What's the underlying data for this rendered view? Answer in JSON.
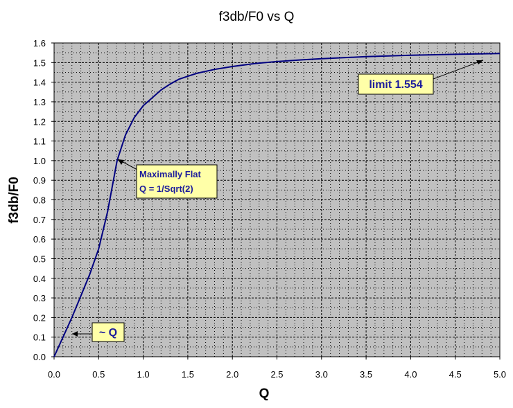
{
  "chart_data": {
    "type": "line",
    "title": "f3db/F0  vs Q",
    "xlabel": "Q",
    "ylabel": "f3db/F0",
    "xlim": [
      0,
      5
    ],
    "ylim": [
      0,
      1.6
    ],
    "x_ticks": [
      "0.0",
      "0.5",
      "1.0",
      "1.5",
      "2.0",
      "2.5",
      "3.0",
      "3.5",
      "4.0",
      "4.5",
      "5.0"
    ],
    "y_ticks": [
      "0.0",
      "0.1",
      "0.2",
      "0.3",
      "0.4",
      "0.5",
      "0.6",
      "0.7",
      "0.8",
      "0.9",
      "1.0",
      "1.1",
      "1.2",
      "1.3",
      "1.4",
      "1.5",
      "1.6"
    ],
    "grid": true,
    "legend": "none",
    "colors": {
      "plot_bg": "#c0c0c0",
      "line": "#000080",
      "annotation_bg": "#ffffa8",
      "annotation_text": "#1c1c9c"
    },
    "series": [
      {
        "x": [
          0.0,
          0.1,
          0.2,
          0.3,
          0.4,
          0.5,
          0.6,
          0.7071,
          0.8,
          0.9,
          1.0,
          1.1,
          1.2,
          1.3,
          1.4,
          1.5,
          1.6,
          1.8,
          2.0,
          2.25,
          2.5,
          2.75,
          3.0,
          3.5,
          4.0,
          4.5,
          5.0
        ],
        "y": [
          0.0,
          0.1,
          0.2,
          0.31,
          0.42,
          0.55,
          0.74,
          1.0,
          1.13,
          1.22,
          1.28,
          1.32,
          1.36,
          1.39,
          1.415,
          1.43,
          1.445,
          1.465,
          1.48,
          1.495,
          1.505,
          1.513,
          1.52,
          1.53,
          1.537,
          1.542,
          1.546
        ]
      }
    ],
    "annotations": [
      {
        "text": "limit 1.554",
        "x": 4.85,
        "y": 1.546
      },
      {
        "text": "Maximally Flat",
        "text2": "Q = 1/Sqrt(2)",
        "x": 0.7071,
        "y": 1.0
      },
      {
        "text": "~ Q",
        "x": 0.2,
        "y": 0.12
      }
    ]
  }
}
